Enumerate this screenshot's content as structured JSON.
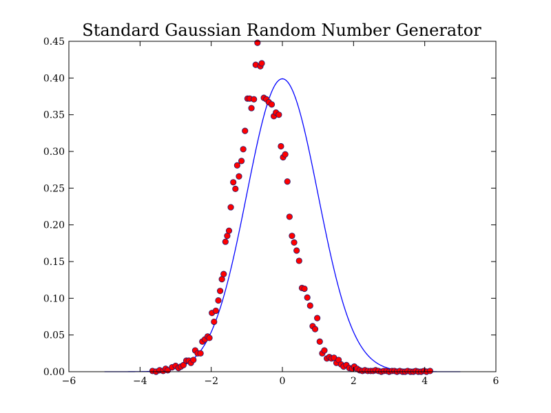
{
  "chart_data": {
    "type": "scatter",
    "title": "Standard Gaussian Random Number Generator",
    "xlabel": "",
    "ylabel": "",
    "xlim": [
      -6,
      6
    ],
    "ylim": [
      0,
      0.45
    ],
    "x_ticks": [
      -6,
      -4,
      -2,
      0,
      2,
      4,
      6
    ],
    "x_tick_labels": [
      "−6",
      "−4",
      "−2",
      "0",
      "2",
      "4",
      "6"
    ],
    "y_ticks": [
      0.0,
      0.05,
      0.1,
      0.15,
      0.2,
      0.25,
      0.3,
      0.35,
      0.4,
      0.45
    ],
    "y_tick_labels": [
      "0.00",
      "0.05",
      "0.10",
      "0.15",
      "0.20",
      "0.25",
      "0.30",
      "0.35",
      "0.40",
      "0.45"
    ],
    "grid": false,
    "legend": "none",
    "curve": {
      "kind": "normal-pdf",
      "mean": 0,
      "std": 1,
      "x_range": [
        -5,
        5
      ],
      "color": "#0000ff"
    },
    "points": {
      "color": "#ff0000",
      "edge_color": "#1a1a6e",
      "x": [
        -3.65,
        -3.55,
        -3.45,
        -3.35,
        -3.28,
        -3.22,
        -3.1,
        -3.0,
        -2.92,
        -2.85,
        -2.78,
        -2.7,
        -2.63,
        -2.57,
        -2.5,
        -2.45,
        -2.38,
        -2.3,
        -2.25,
        -2.18,
        -2.1,
        -2.05,
        -1.98,
        -1.92,
        -1.87,
        -1.8,
        -1.75,
        -1.7,
        -1.65,
        -1.6,
        -1.55,
        -1.5,
        -1.45,
        -1.38,
        -1.32,
        -1.27,
        -1.22,
        -1.15,
        -1.1,
        -1.05,
        -0.98,
        -0.92,
        -0.87,
        -0.8,
        -0.75,
        -0.7,
        -0.62,
        -0.58,
        -0.52,
        -0.45,
        -0.38,
        -0.3,
        -0.24,
        -0.18,
        -0.1,
        -0.04,
        0.02,
        0.08,
        0.14,
        0.2,
        0.27,
        0.33,
        0.4,
        0.47,
        0.55,
        0.62,
        0.7,
        0.78,
        0.85,
        0.92,
        0.98,
        1.05,
        1.12,
        1.18,
        1.25,
        1.32,
        1.38,
        1.45,
        1.52,
        1.58,
        1.65,
        1.72,
        1.8,
        1.88,
        1.96,
        2.02,
        2.1,
        2.17,
        2.25,
        2.32,
        2.4,
        2.48,
        2.55,
        2.62,
        2.7,
        2.78,
        2.85,
        2.93,
        3.0,
        3.08,
        3.15,
        3.22,
        3.3,
        3.38,
        3.45,
        3.52,
        3.6,
        3.68,
        3.75,
        3.82,
        3.9,
        3.98,
        4.05,
        4.15
      ],
      "y": [
        0.001,
        0.0,
        0.002,
        0.001,
        0.004,
        0.002,
        0.006,
        0.008,
        0.005,
        0.007,
        0.009,
        0.015,
        0.015,
        0.012,
        0.016,
        0.029,
        0.025,
        0.025,
        0.041,
        0.044,
        0.048,
        0.046,
        0.08,
        0.068,
        0.083,
        0.097,
        0.11,
        0.126,
        0.133,
        0.177,
        0.185,
        0.192,
        0.224,
        0.258,
        0.249,
        0.281,
        0.266,
        0.287,
        0.303,
        0.328,
        0.372,
        0.372,
        0.359,
        0.371,
        0.418,
        0.448,
        0.416,
        0.42,
        0.373,
        0.371,
        0.367,
        0.364,
        0.348,
        0.353,
        0.35,
        0.307,
        0.292,
        0.296,
        0.259,
        0.211,
        0.185,
        0.176,
        0.165,
        0.151,
        0.114,
        0.113,
        0.101,
        0.09,
        0.062,
        0.058,
        0.073,
        0.041,
        0.025,
        0.029,
        0.018,
        0.02,
        0.018,
        0.019,
        0.012,
        0.016,
        0.01,
        0.007,
        0.009,
        0.005,
        0.004,
        0.007,
        0.004,
        0.002,
        0.001,
        0.002,
        0.001,
        0.001,
        0.001,
        0.002,
        0.001,
        0.0,
        0.001,
        0.001,
        0.0,
        0.001,
        0.001,
        0.0,
        0.001,
        0.0,
        0.0,
        0.001,
        0.0,
        0.0,
        0.001,
        0.0,
        0.0,
        0.001,
        0.0,
        0.001
      ]
    }
  }
}
